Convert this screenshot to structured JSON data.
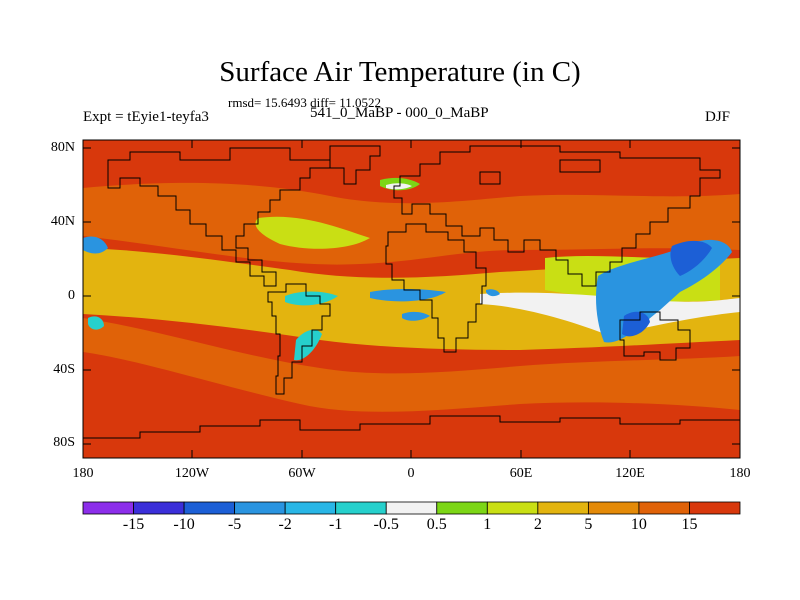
{
  "title": "Surface Air Temperature (in C)",
  "stats": "rmsd= 15.6493 diff= 11.0522",
  "subtitle": "541_0_MaBP - 000_0_MaBP",
  "expt": "Expt = tEyie1-teyfa3",
  "season": "DJF",
  "lat_labels": [
    "80N",
    "40N",
    "0",
    "40S",
    "80S"
  ],
  "lon_labels": [
    "180",
    "120W",
    "60W",
    "0",
    "60E",
    "120E",
    "180"
  ],
  "colorbar": {
    "labels": [
      "-15",
      "-10",
      "-5",
      "-2",
      "-1",
      "-0.5",
      "0.5",
      "1",
      "2",
      "5",
      "10",
      "15"
    ],
    "colors": [
      "#8c2eea",
      "#3b2fd9",
      "#1c5fd6",
      "#2a94e0",
      "#29b6e6",
      "#26d0cc",
      "#f2f2f2",
      "#7cd616",
      "#c9df14",
      "#e3b40f",
      "#e48a08",
      "#e06208",
      "#d8380c"
    ]
  },
  "palette": {
    "background": "#d8380c",
    "deep_warm": "#e06208",
    "warm": "#e48a08",
    "mid": "#e3b40f",
    "light": "#c9df14",
    "green": "#7cd616",
    "white": "#f2f2f2",
    "cyan": "#26d0cc",
    "light_blue": "#2a94e0",
    "blue": "#1c5fd6"
  }
}
